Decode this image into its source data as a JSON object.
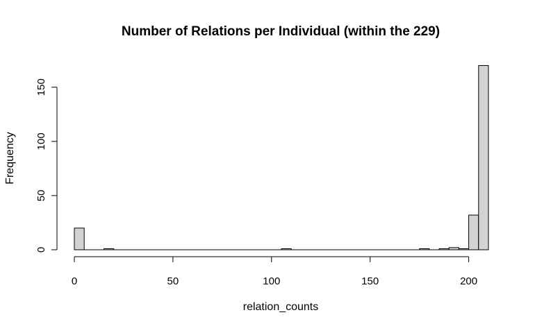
{
  "chart_data": {
    "type": "bar",
    "title": "Number of Relations per Individual (within the 229)",
    "xlabel": "relation_counts",
    "ylabel": "Frequency",
    "bin_width": 5,
    "bin_start": 0,
    "bins": [
      {
        "x0": 0,
        "x1": 5,
        "count": 20
      },
      {
        "x0": 15,
        "x1": 20,
        "count": 1
      },
      {
        "x0": 105,
        "x1": 110,
        "count": 1
      },
      {
        "x0": 175,
        "x1": 180,
        "count": 1
      },
      {
        "x0": 185,
        "x1": 190,
        "count": 1
      },
      {
        "x0": 190,
        "x1": 195,
        "count": 2
      },
      {
        "x0": 195,
        "x1": 200,
        "count": 1
      },
      {
        "x0": 200,
        "x1": 205,
        "count": 32
      },
      {
        "x0": 205,
        "x1": 210,
        "count": 170
      }
    ],
    "xlim": [
      0,
      210
    ],
    "ylim": [
      0,
      170
    ],
    "x_ticks": [
      0,
      50,
      100,
      150,
      200
    ],
    "y_ticks": [
      0,
      50,
      100,
      150
    ],
    "bar_fill": "#d3d3d3",
    "bar_stroke": "#000000",
    "grid": false,
    "legend": "none"
  }
}
